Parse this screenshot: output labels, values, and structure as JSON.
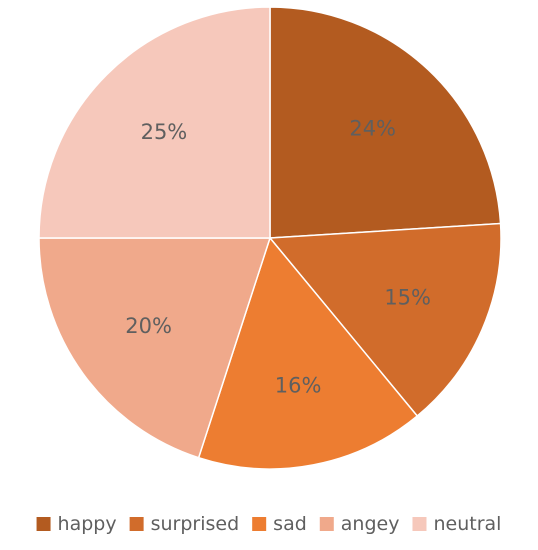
{
  "chart_data": {
    "type": "pie",
    "categories": [
      "happy",
      "surprised",
      "sad",
      "angey",
      "neutral"
    ],
    "values": [
      24,
      15,
      16,
      20,
      25
    ],
    "value_labels": [
      "24%",
      "15%",
      "16%",
      "20%",
      "25%"
    ],
    "colors": [
      "#b35b20",
      "#d16c2b",
      "#ed7d31",
      "#f0a98b",
      "#f6c8bb"
    ],
    "start_angle_deg": 0,
    "direction": "clockwise",
    "legend": "bottom",
    "title": ""
  }
}
